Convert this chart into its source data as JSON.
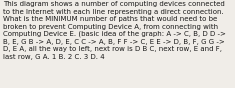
{
  "text": "This diagram shows a number of computing devices connected\nto the Internet with each line representing a direct connection.\nWhat is the MINIMUM number of paths that would need to be\nbroken to prevent Computing Device A, from connecting with\nComputing Device E. (basic idea of the graph: A -> C, B, D D ->\nB, E, G B -> A, D, E, C C -> A, B, F F -> C, E E -> D, B, F, G G ->\nD, E A, all the way to left, next row is D B C, next row, E and F,\nlast row, G A. 1 B. 2 C. 3 D. 4",
  "font_size": 5.05,
  "bg_color": "#f0ede8",
  "text_color": "#1a1a1a",
  "fig_width": 2.35,
  "fig_height": 0.88,
  "dpi": 100
}
